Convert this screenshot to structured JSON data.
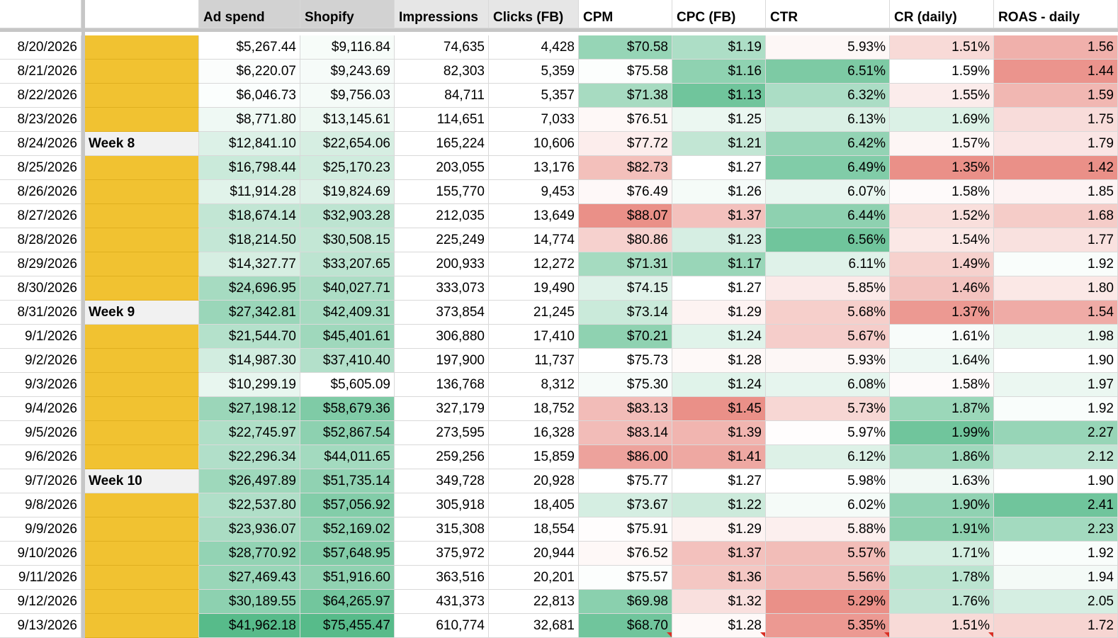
{
  "headers": [
    "",
    "",
    "Ad spend",
    "Shopify",
    "Impressions",
    "Clicks (FB)",
    "CPM",
    "CPC (FB)",
    "CTR",
    "CR (daily)",
    "ROAS - daily"
  ],
  "rows": [
    {
      "date": "8/20/2026",
      "week": "",
      "ad_spend": "$5,267.44",
      "shopify": "$9,116.84",
      "impressions": "74,635",
      "clicks": "4,428",
      "cpm": "$70.58",
      "cpc": "$1.19",
      "ctr": "5.93%",
      "cr": "1.51%",
      "roas": "1.56"
    },
    {
      "date": "8/21/2026",
      "week": "",
      "ad_spend": "$6,220.07",
      "shopify": "$9,243.69",
      "impressions": "82,303",
      "clicks": "5,359",
      "cpm": "$75.58",
      "cpc": "$1.16",
      "ctr": "6.51%",
      "cr": "1.59%",
      "roas": "1.44"
    },
    {
      "date": "8/22/2026",
      "week": "",
      "ad_spend": "$6,046.73",
      "shopify": "$9,756.03",
      "impressions": "84,711",
      "clicks": "5,357",
      "cpm": "$71.38",
      "cpc": "$1.13",
      "ctr": "6.32%",
      "cr": "1.55%",
      "roas": "1.59"
    },
    {
      "date": "8/23/2026",
      "week": "",
      "ad_spend": "$8,771.80",
      "shopify": "$13,145.61",
      "impressions": "114,651",
      "clicks": "7,033",
      "cpm": "$76.51",
      "cpc": "$1.25",
      "ctr": "6.13%",
      "cr": "1.69%",
      "roas": "1.75"
    },
    {
      "date": "8/24/2026",
      "week": "Week 8",
      "ad_spend": "$12,841.10",
      "shopify": "$22,654.06",
      "impressions": "165,224",
      "clicks": "10,606",
      "cpm": "$77.72",
      "cpc": "$1.21",
      "ctr": "6.42%",
      "cr": "1.57%",
      "roas": "1.79"
    },
    {
      "date": "8/25/2026",
      "week": "",
      "ad_spend": "$16,798.44",
      "shopify": "$25,170.23",
      "impressions": "203,055",
      "clicks": "13,176",
      "cpm": "$82.73",
      "cpc": "$1.27",
      "ctr": "6.49%",
      "cr": "1.35%",
      "roas": "1.42"
    },
    {
      "date": "8/26/2026",
      "week": "",
      "ad_spend": "$11,914.28",
      "shopify": "$19,824.69",
      "impressions": "155,770",
      "clicks": "9,453",
      "cpm": "$76.49",
      "cpc": "$1.26",
      "ctr": "6.07%",
      "cr": "1.58%",
      "roas": "1.85"
    },
    {
      "date": "8/27/2026",
      "week": "",
      "ad_spend": "$18,674.14",
      "shopify": "$32,903.28",
      "impressions": "212,035",
      "clicks": "13,649",
      "cpm": "$88.07",
      "cpc": "$1.37",
      "ctr": "6.44%",
      "cr": "1.52%",
      "roas": "1.68"
    },
    {
      "date": "8/28/2026",
      "week": "",
      "ad_spend": "$18,214.50",
      "shopify": "$30,508.15",
      "impressions": "225,249",
      "clicks": "14,774",
      "cpm": "$80.86",
      "cpc": "$1.23",
      "ctr": "6.56%",
      "cr": "1.54%",
      "roas": "1.77"
    },
    {
      "date": "8/29/2026",
      "week": "",
      "ad_spend": "$14,327.77",
      "shopify": "$33,207.65",
      "impressions": "200,933",
      "clicks": "12,272",
      "cpm": "$71.31",
      "cpc": "$1.17",
      "ctr": "6.11%",
      "cr": "1.49%",
      "roas": "1.92"
    },
    {
      "date": "8/30/2026",
      "week": "",
      "ad_spend": "$24,696.95",
      "shopify": "$40,027.71",
      "impressions": "333,073",
      "clicks": "19,490",
      "cpm": "$74.15",
      "cpc": "$1.27",
      "ctr": "5.85%",
      "cr": "1.46%",
      "roas": "1.80"
    },
    {
      "date": "8/31/2026",
      "week": "Week 9",
      "ad_spend": "$27,342.81",
      "shopify": "$42,409.31",
      "impressions": "373,854",
      "clicks": "21,245",
      "cpm": "$73.14",
      "cpc": "$1.29",
      "ctr": "5.68%",
      "cr": "1.37%",
      "roas": "1.54"
    },
    {
      "date": "9/1/2026",
      "week": "",
      "ad_spend": "$21,544.70",
      "shopify": "$45,401.61",
      "impressions": "306,880",
      "clicks": "17,410",
      "cpm": "$70.21",
      "cpc": "$1.24",
      "ctr": "5.67%",
      "cr": "1.61%",
      "roas": "1.98"
    },
    {
      "date": "9/2/2026",
      "week": "",
      "ad_spend": "$14,987.30",
      "shopify": "$37,410.40",
      "impressions": "197,900",
      "clicks": "11,737",
      "cpm": "$75.73",
      "cpc": "$1.28",
      "ctr": "5.93%",
      "cr": "1.64%",
      "roas": "1.90"
    },
    {
      "date": "9/3/2026",
      "week": "",
      "ad_spend": "$10,299.19",
      "shopify": "$5,605.09",
      "impressions": "136,768",
      "clicks": "8,312",
      "cpm": "$75.30",
      "cpc": "$1.24",
      "ctr": "6.08%",
      "cr": "1.58%",
      "roas": "1.97"
    },
    {
      "date": "9/4/2026",
      "week": "",
      "ad_spend": "$27,198.12",
      "shopify": "$58,679.36",
      "impressions": "327,179",
      "clicks": "18,752",
      "cpm": "$83.13",
      "cpc": "$1.45",
      "ctr": "5.73%",
      "cr": "1.87%",
      "roas": "1.92"
    },
    {
      "date": "9/5/2026",
      "week": "",
      "ad_spend": "$22,745.97",
      "shopify": "$52,867.54",
      "impressions": "273,595",
      "clicks": "16,328",
      "cpm": "$83.14",
      "cpc": "$1.39",
      "ctr": "5.97%",
      "cr": "1.99%",
      "roas": "2.27"
    },
    {
      "date": "9/6/2026",
      "week": "",
      "ad_spend": "$22,296.34",
      "shopify": "$44,011.65",
      "impressions": "259,256",
      "clicks": "15,859",
      "cpm": "$86.00",
      "cpc": "$1.41",
      "ctr": "6.12%",
      "cr": "1.86%",
      "roas": "2.12"
    },
    {
      "date": "9/7/2026",
      "week": "Week 10",
      "ad_spend": "$26,497.89",
      "shopify": "$51,735.14",
      "impressions": "349,728",
      "clicks": "20,928",
      "cpm": "$75.77",
      "cpc": "$1.27",
      "ctr": "5.98%",
      "cr": "1.63%",
      "roas": "1.90"
    },
    {
      "date": "9/8/2026",
      "week": "",
      "ad_spend": "$22,537.80",
      "shopify": "$57,056.92",
      "impressions": "305,918",
      "clicks": "18,405",
      "cpm": "$73.67",
      "cpc": "$1.22",
      "ctr": "6.02%",
      "cr": "1.90%",
      "roas": "2.41"
    },
    {
      "date": "9/9/2026",
      "week": "",
      "ad_spend": "$23,936.07",
      "shopify": "$52,169.02",
      "impressions": "315,308",
      "clicks": "18,554",
      "cpm": "$75.91",
      "cpc": "$1.29",
      "ctr": "5.88%",
      "cr": "1.91%",
      "roas": "2.23"
    },
    {
      "date": "9/10/2026",
      "week": "",
      "ad_spend": "$28,770.92",
      "shopify": "$57,648.95",
      "impressions": "375,972",
      "clicks": "20,944",
      "cpm": "$76.52",
      "cpc": "$1.37",
      "ctr": "5.57%",
      "cr": "1.71%",
      "roas": "1.92"
    },
    {
      "date": "9/11/2026",
      "week": "",
      "ad_spend": "$27,469.43",
      "shopify": "$51,916.60",
      "impressions": "363,516",
      "clicks": "20,201",
      "cpm": "$75.57",
      "cpc": "$1.36",
      "ctr": "5.56%",
      "cr": "1.78%",
      "roas": "1.94"
    },
    {
      "date": "9/12/2026",
      "week": "",
      "ad_spend": "$30,189.55",
      "shopify": "$64,265.97",
      "impressions": "431,373",
      "clicks": "22,813",
      "cpm": "$69.98",
      "cpc": "$1.32",
      "ctr": "5.29%",
      "cr": "1.76%",
      "roas": "2.05"
    },
    {
      "date": "9/13/2026",
      "week": "",
      "ad_spend": "$41,962.18",
      "shopify": "$75,455.47",
      "impressions": "610,774",
      "clicks": "32,681",
      "cpm": "$68.70",
      "cpc": "$1.28",
      "ctr": "5.35%",
      "cr": "1.51%",
      "roas": "1.72"
    }
  ],
  "colors": {
    "week_block": "#f1c231",
    "scale_low_good": "#57bb8a",
    "scale_high_bad": "#e67c73",
    "white": "#ffffff"
  }
}
